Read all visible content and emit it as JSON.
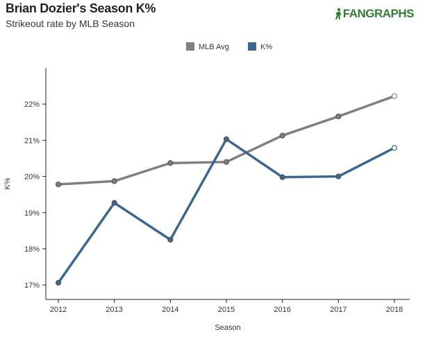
{
  "header": {
    "title": "Brian Dozier's Season K%",
    "subtitle": "Strikeout rate by MLB Season",
    "logo_text": "FANGRAPHS"
  },
  "colors": {
    "mlb_avg": "#7f7f7f",
    "player": "#3a6690",
    "axis": "#222222",
    "marker_stroke": "#555555",
    "logo": "#2e7d32"
  },
  "chart_data": {
    "type": "line",
    "title": "Brian Dozier's Season K%",
    "subtitle": "Strikeout rate by MLB Season",
    "xlabel": "Season",
    "ylabel": "K%",
    "categories": [
      "2012",
      "2013",
      "2014",
      "2015",
      "2016",
      "2017",
      "2018"
    ],
    "ylim": [
      16.6,
      23.0
    ],
    "yticks": [
      17,
      18,
      19,
      20,
      21,
      22
    ],
    "ytick_labels": [
      "17%",
      "18%",
      "19%",
      "20%",
      "21%",
      "22%"
    ],
    "legend_position": "top-center",
    "grid": false,
    "series": [
      {
        "name": "MLB Avg",
        "values": [
          19.78,
          19.87,
          20.37,
          20.4,
          21.13,
          21.66,
          22.22
        ],
        "last_point_hollow": true
      },
      {
        "name": "K%",
        "values": [
          17.06,
          19.27,
          18.25,
          21.03,
          19.98,
          20.0,
          20.79
        ],
        "last_point_hollow": true
      }
    ]
  }
}
